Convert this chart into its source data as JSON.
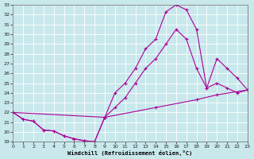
{
  "xlabel": "Windchill (Refroidissement éolien,°C)",
  "xlim": [
    0,
    23
  ],
  "ylim": [
    19,
    33
  ],
  "xticks": [
    0,
    1,
    2,
    3,
    4,
    5,
    6,
    7,
    8,
    9,
    10,
    11,
    12,
    13,
    14,
    15,
    16,
    17,
    18,
    19,
    20,
    21,
    22,
    23
  ],
  "yticks": [
    19,
    20,
    21,
    22,
    23,
    24,
    25,
    26,
    27,
    28,
    29,
    30,
    31,
    32,
    33
  ],
  "bg_color": "#c8e8ec",
  "line_color": "#aa0099",
  "grid_color": "#ffffff",
  "line1_x": [
    0,
    1,
    2,
    3,
    4,
    5,
    6,
    7,
    8,
    9,
    10,
    11,
    12,
    13,
    14,
    15,
    16,
    17,
    18,
    19,
    20,
    21,
    22,
    23
  ],
  "line1_y": [
    22.0,
    21.3,
    21.1,
    20.2,
    20.1,
    19.6,
    19.3,
    19.1,
    19.0,
    21.5,
    24.0,
    25.0,
    26.5,
    28.5,
    29.5,
    32.3,
    33.0,
    32.5,
    30.5,
    24.5,
    25.0,
    24.5,
    24.0,
    24.3
  ],
  "line2_x": [
    0,
    1,
    2,
    3,
    4,
    5,
    6,
    7,
    8,
    9,
    10,
    11,
    12,
    13,
    14,
    15,
    16,
    17,
    18,
    19,
    20,
    21,
    22,
    23
  ],
  "line2_y": [
    22.0,
    21.3,
    21.1,
    20.2,
    20.1,
    19.6,
    19.3,
    19.1,
    19.0,
    21.5,
    22.5,
    23.5,
    25.0,
    26.5,
    27.5,
    29.0,
    30.5,
    29.5,
    26.5,
    24.5,
    27.5,
    26.5,
    25.5,
    24.3
  ],
  "line3_x": [
    0,
    9,
    14,
    18,
    20,
    23
  ],
  "line3_y": [
    22.0,
    21.5,
    22.5,
    23.3,
    23.8,
    24.3
  ]
}
